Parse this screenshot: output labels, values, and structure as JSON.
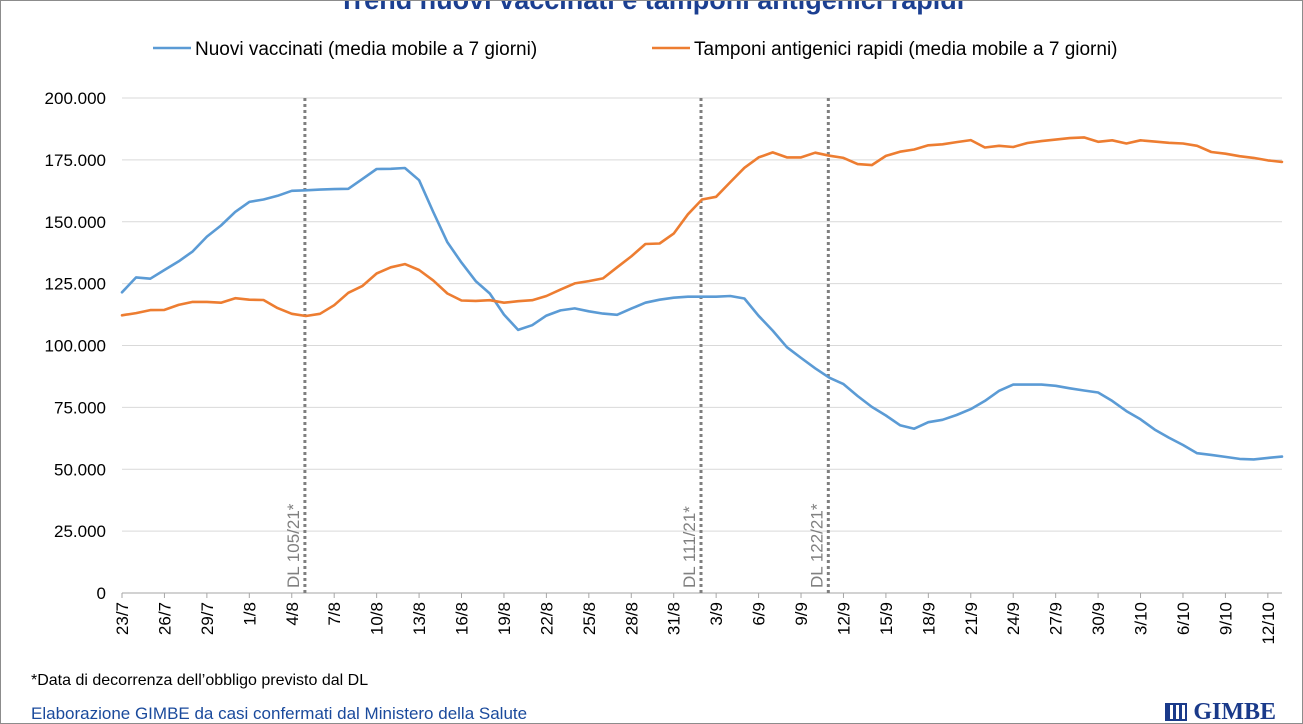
{
  "chart_data": {
    "type": "line",
    "title": "Trend nuovi vaccinati e tamponi antigenici rapidi",
    "xlabel": "",
    "ylabel": "",
    "ylim": [
      0,
      200000
    ],
    "yticks": [
      "0",
      "25.000",
      "50.000",
      "75.000",
      "100.000",
      "125.000",
      "150.000",
      "175.000",
      "200.000"
    ],
    "xtick_labels": [
      "23/7",
      "26/7",
      "29/7",
      "1/8",
      "4/8",
      "7/8",
      "10/8",
      "13/8",
      "16/8",
      "19/8",
      "22/8",
      "25/8",
      "28/8",
      "31/8",
      "3/9",
      "6/9",
      "9/9",
      "12/9",
      "15/9",
      "18/9",
      "21/9",
      "24/9",
      "27/9",
      "30/9",
      "3/10",
      "6/10",
      "9/10",
      "12/10"
    ],
    "legend_position": "top",
    "series": [
      {
        "name": "Nuovi vaccinati (media mobile a 7 giorni)",
        "color": "#5b9bd5",
        "values": [
          121500,
          127500,
          127000,
          130500,
          134000,
          138000,
          144000,
          148500,
          154000,
          158000,
          159000,
          160500,
          162500,
          162700,
          163000,
          163200,
          163300,
          167300,
          171300,
          171400,
          171700,
          166800,
          154000,
          141700,
          133500,
          126000,
          121000,
          112500,
          106300,
          108200,
          112100,
          114200,
          115000,
          113800,
          112900,
          112400,
          114900,
          117300,
          118500,
          119300,
          119700,
          119700,
          119700,
          120000,
          119000,
          112000,
          106000,
          99300,
          95000,
          90800,
          87000,
          84400,
          79600,
          75200,
          71700,
          67800,
          66400,
          69000,
          70000,
          71900,
          74300,
          77600,
          81700,
          84200,
          84200,
          84200,
          83700,
          82700,
          81800,
          81000,
          77600,
          73500,
          70200,
          66000,
          62800,
          59800,
          56500,
          55800,
          55000,
          54200,
          54000,
          54600,
          55100
        ]
      },
      {
        "name": "Tamponi antigenici rapidi (media mobile a 7 giorni)",
        "color": "#ed7d31",
        "values": [
          112200,
          113100,
          114300,
          114400,
          116400,
          117600,
          117600,
          117300,
          119100,
          118500,
          118400,
          115100,
          112800,
          111900,
          112800,
          116300,
          121300,
          124100,
          129100,
          131600,
          132900,
          130500,
          126300,
          121000,
          118200,
          118000,
          118300,
          117300,
          117900,
          118300,
          120000,
          122600,
          125100,
          126000,
          127100,
          131600,
          136000,
          141000,
          141200,
          145200,
          153000,
          159000,
          160100,
          166000,
          171800,
          176000,
          178000,
          176000,
          176000,
          177900,
          176700,
          175800,
          173300,
          172900,
          176600,
          178300,
          179200,
          180900,
          181300,
          182200,
          183000,
          180000,
          180700,
          180200,
          181800,
          182600,
          183200,
          183800,
          184100,
          182300,
          182900,
          181600,
          182900,
          182400,
          181900,
          181600,
          180700,
          178200,
          177500,
          176500,
          175800,
          174800,
          174200
        ]
      }
    ],
    "markers": [
      {
        "index": 13,
        "label": "DL 105/21*"
      },
      {
        "index": 41,
        "label": "DL 111/21*"
      },
      {
        "index": 50,
        "label": "DL 122/21*"
      }
    ]
  },
  "footer": {
    "note": "*Data di decorrenza dell’obbligo previsto dal DL",
    "source": "Elaborazione GIMBE da casi confermati dal Ministero della Salute",
    "brand": "GIMBE"
  }
}
